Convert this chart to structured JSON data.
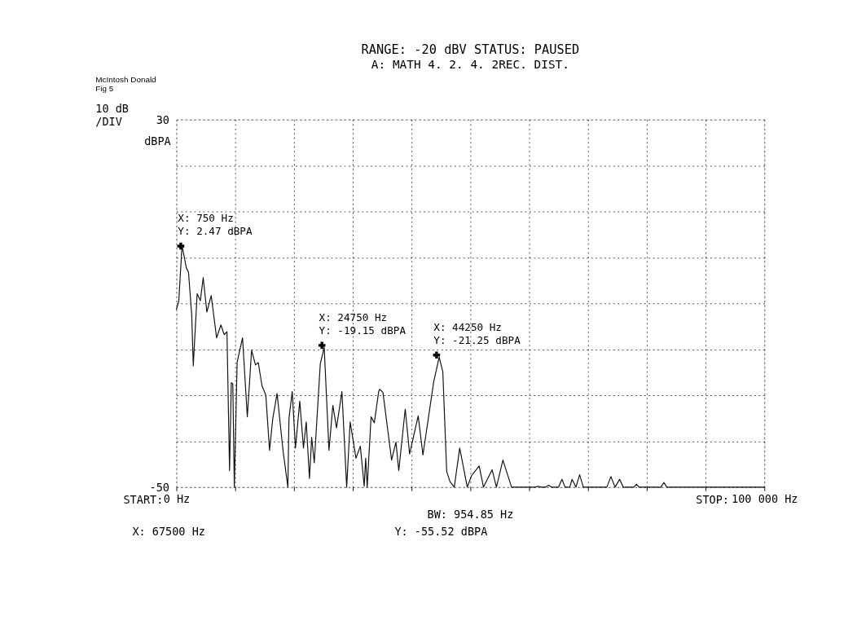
{
  "chart_data": {
    "type": "line",
    "title": "RANGE: -20 dBV     STATUS: PAUSED",
    "subtitle": "A: MATH          4. 2. 4. 2REC. DIST.",
    "ylabel": "dBPA",
    "xlim": [
      0,
      100000
    ],
    "ylim": [
      -50,
      30
    ],
    "xticks": [
      {
        "value": 0,
        "label": "0 Hz"
      },
      {
        "value": 10000,
        "label": null
      },
      {
        "value": 20000,
        "label": null
      },
      {
        "value": 30000,
        "label": null
      },
      {
        "value": 40000,
        "label": null
      },
      {
        "value": 50000,
        "label": null
      },
      {
        "value": 60000,
        "label": null
      },
      {
        "value": 70000,
        "label": null
      },
      {
        "value": 80000,
        "label": null
      },
      {
        "value": 90000,
        "label": null
      },
      {
        "value": 100000,
        "label": "100 000 Hz"
      }
    ],
    "yticks": [
      -50,
      {
        "value": -40,
        "label": null
      },
      {
        "value": -30,
        "label": null
      },
      {
        "value": -20,
        "label": null
      },
      {
        "value": -10,
        "label": null
      },
      {
        "value": 0,
        "label": null
      },
      {
        "value": 10,
        "label": null
      },
      {
        "value": 20,
        "label": null
      },
      30
    ],
    "grid": true,
    "marker": "none",
    "line_style": "solid",
    "x": [
      0,
      400,
      960,
      1690,
      2060,
      2610,
      2870,
      3530,
      4080,
      4560,
      5180,
      5920,
      6840,
      7570,
      8120,
      8600,
      9040,
      9340,
      9590,
      9850,
      10330,
      11250,
      12060,
      12790,
      13450,
      13930,
      14550,
      15210,
      15840,
      16390,
      17120,
      18150,
      18960,
      19140,
      19700,
      20250,
      20980,
      21610,
      22080,
      22630,
      23010,
      23450,
      24470,
      25140,
      25950,
      26610,
      27230,
      28150,
      28960,
      29550,
      30540,
      31280,
      31940,
      32190,
      32450,
      33110,
      33660,
      34400,
      34580,
      35130,
      36600,
      37340,
      37820,
      38920,
      39660,
      41120,
      41930,
      43770,
      44690,
      45310,
      45970,
      46530,
      47260,
      48180,
      49470,
      50200,
      51490,
      52230,
      53690,
      54430,
      55530,
      57000,
      61000,
      61480,
      62000,
      62800,
      63320,
      63800,
      65000,
      65570,
      66100,
      66900,
      67290,
      67950,
      68580,
      69200,
      73200,
      73900,
      74600,
      75380,
      76000,
      77800,
      78240,
      78700,
      82400,
      82910,
      83400,
      100000
    ],
    "series": [
      {
        "color": "#111111",
        "values": [
          -11.3,
          -9.6,
          2.6,
          -2.3,
          -3.2,
          -12.6,
          -23.6,
          -7.9,
          -9.4,
          -4.4,
          -11.9,
          -8.3,
          -17.5,
          -14.7,
          -16.8,
          -16.2,
          -46.4,
          -27.3,
          -27.5,
          -50,
          -22.8,
          -17.5,
          -34.7,
          -20.2,
          -23.4,
          -22.9,
          -27.9,
          -30,
          -42,
          -35.1,
          -29.6,
          -42.2,
          -50,
          -35.1,
          -29.2,
          -41.5,
          -31.3,
          -41.5,
          -35.8,
          -48.1,
          -39.2,
          -44.7,
          -23.2,
          -19.6,
          -42,
          -32.2,
          -37.1,
          -29.2,
          -50,
          -35.8,
          -43.7,
          -41.1,
          -49.8,
          -43.7,
          -50,
          -34.7,
          -36,
          -29.2,
          -28.7,
          -29.4,
          -44.1,
          -40.2,
          -46.4,
          -33,
          -42.8,
          -34.5,
          -43,
          -27,
          -21.7,
          -24.9,
          -46.6,
          -48.8,
          -50,
          -41.5,
          -50,
          -47.5,
          -45.4,
          -50,
          -46.2,
          -50,
          -44.1,
          -50,
          -50,
          -49.8,
          -50,
          -50,
          -49.6,
          -50,
          -50,
          -48.3,
          -50,
          -50,
          -48.3,
          -50,
          -47.3,
          -50,
          -50,
          -47.7,
          -50,
          -48.3,
          -50,
          -50,
          -49.4,
          -50,
          -50,
          -49,
          -50,
          -50
        ]
      },
      {
        "type": "scatter",
        "marker": "cross",
        "color": "#000000",
        "x": [
          750,
          24750,
          44250
        ],
        "values": [
          2.47,
          -19.15,
          -21.25
        ]
      }
    ],
    "annotations": [
      {
        "text": "X: 750 Hz\nY: 2.47 dBPA",
        "x": 750,
        "y": 2.47
      },
      {
        "text": "X: 24750 Hz\nY: -19.15 dBPA",
        "x": 24750,
        "y": -19.15
      },
      {
        "text": "X: 44250 Hz\nY: -21.25 dBPA",
        "x": 44250,
        "y": -21.25
      },
      "McIntosh Donald\nFig 5",
      "10 dB\n/DIV",
      "BW: 954.85 Hz",
      "START:",
      "STOP:",
      "X: 67500 Hz",
      "Y: -55.52 dBPA"
    ]
  }
}
